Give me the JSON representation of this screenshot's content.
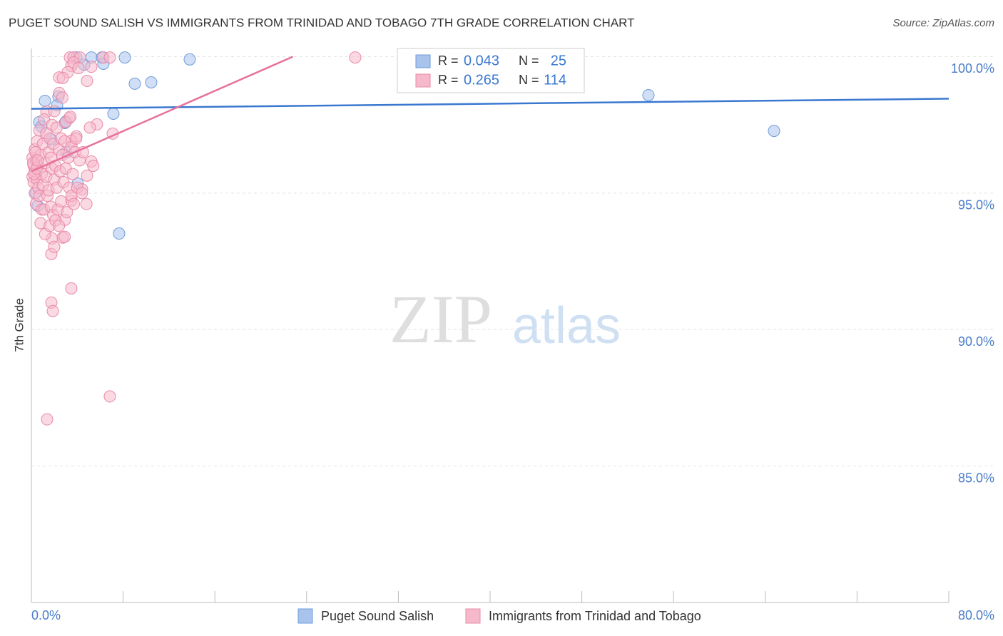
{
  "chart_data": {
    "type": "scatter",
    "title": "PUGET SOUND SALISH VS IMMIGRANTS FROM TRINIDAD AND TOBAGO 7TH GRADE CORRELATION CHART",
    "source": "Source: ZipAtlas.com",
    "y_label": "7th Grade",
    "watermark": [
      "ZIP",
      "atlas"
    ],
    "xlim": [
      0,
      80
    ],
    "ylim": [
      80,
      100.3
    ],
    "xticks": [
      {
        "value": 0,
        "label": "0.0%"
      },
      {
        "value": 80,
        "label": "80.0%"
      }
    ],
    "xticks_minor": [
      8,
      16,
      24,
      32,
      40,
      48,
      56,
      64,
      72
    ],
    "yticks": [
      {
        "value": 85,
        "label": "85.0%"
      },
      {
        "value": 90,
        "label": "90.0%"
      },
      {
        "value": 95,
        "label": "95.0%"
      },
      {
        "value": 100,
        "label": "100.0%"
      }
    ],
    "grid": true,
    "r_label": "R =",
    "n_label": "N =",
    "series": [
      {
        "name": "Puget Sound Salish",
        "color": "#a9c4ec",
        "stroke": "#6f9bd8",
        "line_color": "#3a78d0",
        "r": 0.043,
        "n": 25,
        "x": [
          1.18,
          0.68,
          0.87,
          2.36,
          2.24,
          1.74,
          2.92,
          3.05,
          3.92,
          4.6,
          5.23,
          6.16,
          6.28,
          8.15,
          9.02,
          10.45,
          13.81,
          7.15,
          4.04,
          7.65,
          0.56,
          0.37,
          53.81,
          64.76,
          2.99
        ],
        "values": [
          98.38,
          97.6,
          97.44,
          98.54,
          98.22,
          96.97,
          97.57,
          96.5,
          99.97,
          99.71,
          99.97,
          99.97,
          99.74,
          99.97,
          99.01,
          99.06,
          99.9,
          97.91,
          95.35,
          93.52,
          94.54,
          95.01,
          98.59,
          97.28,
          97.62
        ],
        "trend": {
          "x": [
            0,
            80
          ],
          "values": [
            98.09,
            98.46
          ]
        }
      },
      {
        "name": "Immigrants from Trinidad and Tobago",
        "color": "#f6b9cc",
        "stroke": "#e88aa8",
        "line_color": "#e8709a",
        "r": 0.265,
        "n": 114,
        "x": [
          3.36,
          3.67,
          4.23,
          6.28,
          6.84,
          28.24,
          3.48,
          3.67,
          5.23,
          4.11,
          3.17,
          2.43,
          2.74,
          4.85,
          2.43,
          1.31,
          3.3,
          5.72,
          7.09,
          3.92,
          3.48,
          5.23,
          4.85,
          4.42,
          3.48,
          2.92,
          1.8,
          2.74,
          1.74,
          3.48,
          1.74,
          1.87,
          6.84,
          1.37,
          1.99,
          0.1,
          0.1,
          0.2,
          0.2,
          0.3,
          0.3,
          0.3,
          0.4,
          0.4,
          0.5,
          0.5,
          0.6,
          0.6,
          0.7,
          0.7,
          0.8,
          0.8,
          0.9,
          0.9,
          1.0,
          1.0,
          1.1,
          1.1,
          1.2,
          1.2,
          1.3,
          1.3,
          1.4,
          1.5,
          1.5,
          1.6,
          1.6,
          1.7,
          1.7,
          1.8,
          1.8,
          1.9,
          1.9,
          2.0,
          2.0,
          2.1,
          2.1,
          2.2,
          2.2,
          2.3,
          2.4,
          2.4,
          2.5,
          2.6,
          2.6,
          2.7,
          2.7,
          2.8,
          2.9,
          2.9,
          3.0,
          3.0,
          3.1,
          3.2,
          3.3,
          3.4,
          3.5,
          3.5,
          3.6,
          3.7,
          3.8,
          3.9,
          4.0,
          4.2,
          4.4,
          4.5,
          4.8,
          5.1,
          5.4,
          0.15,
          0.25,
          0.35,
          0.45,
          0.55
        ],
        "values": [
          99.97,
          99.97,
          99.97,
          99.97,
          99.97,
          99.97,
          99.66,
          99.79,
          99.63,
          99.58,
          99.43,
          99.24,
          99.22,
          99.11,
          98.67,
          97.99,
          97.75,
          97.52,
          97.18,
          97.08,
          96.92,
          96.16,
          95.64,
          95.14,
          94.73,
          94.02,
          93.34,
          93.37,
          92.77,
          91.51,
          90.99,
          90.68,
          87.55,
          86.71,
          93.03,
          96.3,
          95.6,
          96.0,
          95.4,
          96.6,
          95.0,
          95.8,
          96.2,
          94.6,
          95.5,
          96.9,
          96.0,
          95.2,
          94.9,
          97.3,
          96.4,
          93.9,
          95.7,
          94.4,
          96.8,
          95.3,
          97.7,
          94.4,
          96.1,
          93.5,
          95.6,
          97.2,
          94.9,
          96.5,
          95.1,
          97.0,
          93.8,
          94.5,
          96.3,
          95.9,
          97.5,
          94.2,
          96.8,
          95.5,
          98.0,
          94.0,
          96.0,
          97.4,
          95.2,
          94.4,
          96.6,
          93.8,
          95.8,
          97.0,
          94.7,
          96.4,
          98.5,
          95.4,
          93.4,
          96.9,
          95.9,
          97.6,
          94.3,
          96.3,
          95.2,
          97.8,
          94.9,
          96.7,
          95.7,
          94.6,
          96.5,
          97.0,
          95.2,
          96.2,
          95.0,
          96.5,
          94.6,
          97.4,
          96.0,
          96.1,
          95.7,
          96.5,
          95.9,
          96.2
        ],
        "trend": {
          "x": [
            0,
            22.8
          ],
          "values": [
            95.8,
            100
          ]
        }
      }
    ]
  }
}
